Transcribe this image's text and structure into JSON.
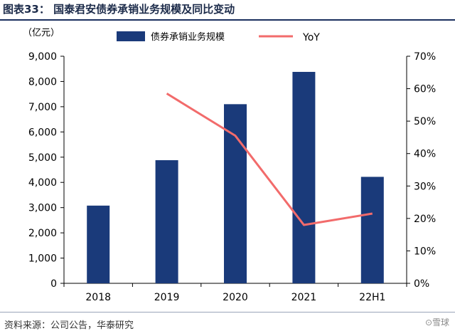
{
  "page": {
    "title": "图表33： 国泰君安债券承销业务规模及同比变动",
    "source": "资料来源：公司公告，华泰研究",
    "watermark": "⊙雪球"
  },
  "colors": {
    "bar": "#1a3a7a",
    "line": "#f26b6b",
    "title": "#1c2b4a"
  },
  "chart_data": {
    "type": "bar",
    "categories": [
      "2018",
      "2019",
      "2020",
      "2021",
      "22H1"
    ],
    "series": [
      {
        "name": "债券承销业务规模",
        "kind": "bar",
        "axis": "left",
        "values": [
          3080,
          4880,
          7100,
          8380,
          4220
        ]
      },
      {
        "name": "YoY",
        "kind": "line",
        "axis": "right",
        "points": [
          {
            "category": "2019",
            "value": 58.5
          },
          {
            "category": "2020",
            "value": 45.5
          },
          {
            "category": "2021",
            "value": 18.0
          },
          {
            "category": "22H1",
            "value": 21.5
          }
        ]
      }
    ],
    "y_left": {
      "label": "（亿元）",
      "min": 0,
      "max": 9000,
      "step": 1000,
      "ticks": [
        "0",
        "1,000",
        "2,000",
        "3,000",
        "4,000",
        "5,000",
        "6,000",
        "7,000",
        "8,000",
        "9,000"
      ]
    },
    "y_right": {
      "min": 0,
      "max": 70,
      "step": 10,
      "ticks": [
        "0%",
        "10%",
        "20%",
        "30%",
        "40%",
        "50%",
        "60%",
        "70%"
      ]
    },
    "legend": {
      "position": "top",
      "bar_label": "债券承销业务规模",
      "line_label": "YoY"
    },
    "grid": false
  }
}
